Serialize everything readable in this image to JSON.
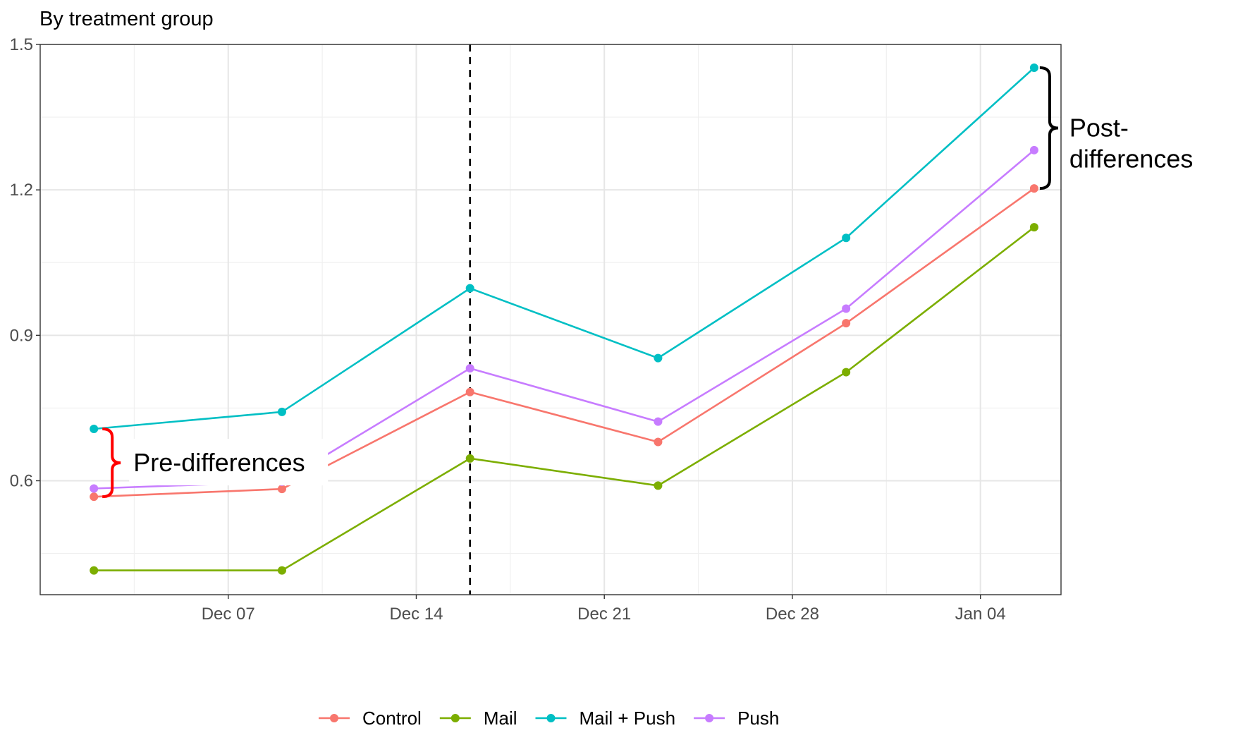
{
  "chart_data": {
    "type": "line",
    "subtitle": "By treatment group",
    "x_format": "date",
    "x": [
      "2020-12-02",
      "2020-12-09",
      "2020-12-16",
      "2020-12-23",
      "2020-12-30",
      "2021-01-06"
    ],
    "xlim": [
      "2020-11-30",
      "2021-01-07"
    ],
    "x_ticks": [
      "2020-12-07",
      "2020-12-14",
      "2020-12-21",
      "2020-12-28",
      "2021-01-04"
    ],
    "x_tick_labels": [
      "Dec 07",
      "Dec 14",
      "Dec 21",
      "Dec 28",
      "Jan 04"
    ],
    "ylim": [
      0.365,
      1.5
    ],
    "y_ticks": [
      0.6,
      0.9,
      1.2,
      1.5
    ],
    "y_tick_labels": [
      "0.6",
      "0.9",
      "1.2",
      "1.5"
    ],
    "grid": true,
    "legend_position": "bottom",
    "vline": {
      "x": "2020-12-16",
      "style": "dashed"
    },
    "series": [
      {
        "name": "Control",
        "color": "#F8766D",
        "values": [
          0.567,
          0.583,
          0.783,
          0.68,
          0.925,
          1.203
        ]
      },
      {
        "name": "Mail",
        "color": "#7CAE00",
        "values": [
          0.415,
          0.415,
          0.646,
          0.59,
          0.824,
          1.123
        ]
      },
      {
        "name": "Mail + Push",
        "color": "#00BFC4",
        "values": [
          0.707,
          0.742,
          0.997,
          0.853,
          1.101,
          1.452
        ]
      },
      {
        "name": "Push",
        "color": "#C77CFF",
        "values": [
          0.584,
          0.598,
          0.832,
          0.722,
          0.955,
          1.282
        ]
      }
    ],
    "annotations": [
      {
        "text": "Pre-differences",
        "brace_color": "#FF0000",
        "x": "2020-12-02",
        "y_range": [
          0.567,
          0.707
        ]
      },
      {
        "text_lines": [
          "Post-",
          "differences"
        ],
        "brace_color": "#000000",
        "x": "2021-01-06",
        "y_range": [
          1.203,
          1.452
        ]
      }
    ]
  }
}
